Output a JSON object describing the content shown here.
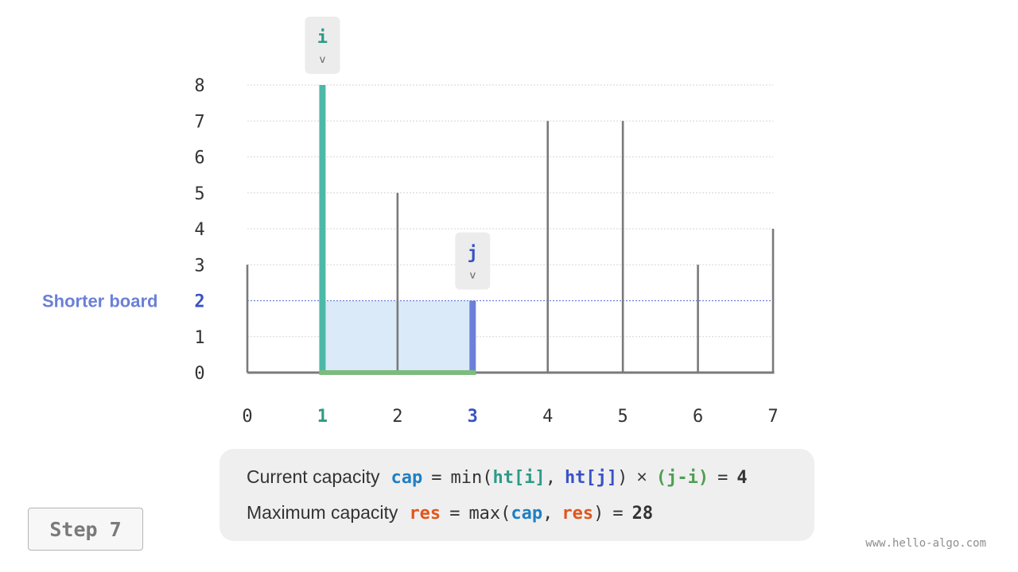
{
  "chart_data": {
    "type": "bar",
    "categories": [
      "0",
      "1",
      "2",
      "3",
      "4",
      "5",
      "6",
      "7"
    ],
    "values": [
      3,
      8,
      5,
      2,
      7,
      7,
      3,
      4
    ],
    "y_ticks": [
      "0",
      "1",
      "2",
      "3",
      "4",
      "5",
      "6",
      "7",
      "8"
    ],
    "ylim": [
      0,
      8
    ],
    "pointer_i": {
      "label": "i",
      "index": 1,
      "arrow": "v"
    },
    "pointer_j": {
      "label": "j",
      "index": 3,
      "arrow": "v"
    },
    "water_level": 2,
    "shorter_board_label": "Shorter board",
    "shorter_board_tick": "2"
  },
  "formula": {
    "line1": {
      "label": "Current capacity",
      "var": "cap",
      "eq": "=",
      "fn": "min(",
      "hti": "ht[i]",
      "comma": ",",
      "htj": "ht[j]",
      "close": ")",
      "times": "×",
      "width": "(j-i)",
      "eq2": "=",
      "result": "4"
    },
    "line2": {
      "label": "Maximum capacity",
      "var": "res",
      "eq": "=",
      "fn": "max(",
      "cap": "cap",
      "comma": ",",
      "res": "res",
      "close": ")",
      "eq2": "=",
      "result": "28"
    }
  },
  "step": "Step 7",
  "watermark": "www.hello-algo.com",
  "colors": {
    "pointer_i": "#4cb8a8",
    "pointer_j": "#6b80d8",
    "water_fill": "#daeaf8",
    "base": "#7dbb7d",
    "board": "#7a7a7a",
    "shorter_board": "#6b80d8",
    "grid": "#d6d6d6",
    "tag_bg": "#ececec"
  }
}
